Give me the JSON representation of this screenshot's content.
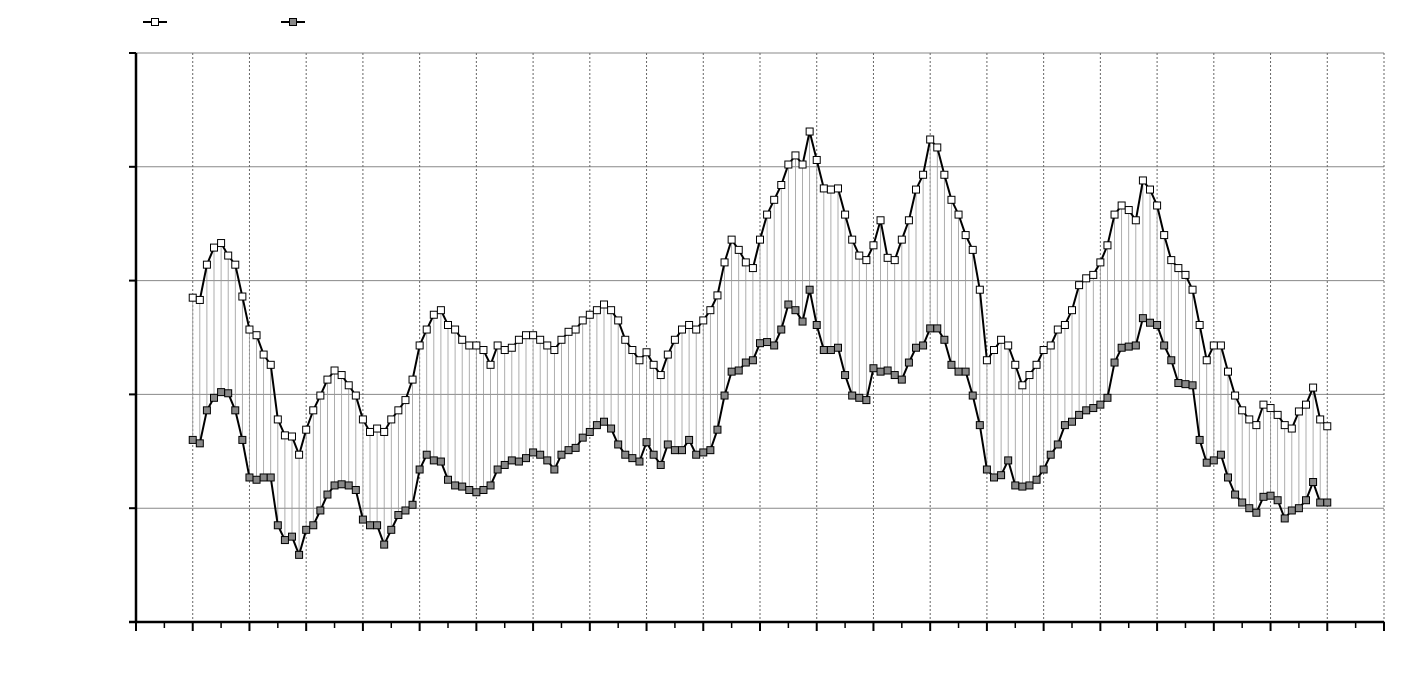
{
  "chart_data": {
    "type": "line",
    "x": [
      1,
      1.125,
      1.25,
      1.375,
      1.5,
      1.625,
      1.75,
      1.875,
      2,
      2.125,
      2.25,
      2.375,
      2.5,
      2.625,
      2.75,
      2.875,
      3,
      3.125,
      3.25,
      3.375,
      3.5,
      3.625,
      3.75,
      3.875,
      4,
      4.125,
      4.25,
      4.375,
      4.5,
      4.625,
      4.75,
      4.875,
      5,
      5.125,
      5.25,
      5.375,
      5.5,
      5.625,
      5.75,
      5.875,
      6,
      6.125,
      6.25,
      6.375,
      6.5,
      6.625,
      6.75,
      6.875,
      7,
      7.125,
      7.25,
      7.375,
      7.5,
      7.625,
      7.75,
      7.875,
      8,
      8.125,
      8.25,
      8.375,
      8.5,
      8.625,
      8.75,
      8.875,
      9,
      9.125,
      9.25,
      9.375,
      9.5,
      9.625,
      9.75,
      9.875,
      10,
      10.125,
      10.25,
      10.375,
      10.5,
      10.625,
      10.75,
      10.875,
      11,
      11.125,
      11.25,
      11.375,
      11.5,
      11.625,
      11.75,
      11.875,
      12,
      12.125,
      12.25,
      12.375,
      12.5,
      12.625,
      12.75,
      12.875,
      13,
      13.125,
      13.25,
      13.375,
      13.5,
      13.625,
      13.75,
      13.875,
      14,
      14.125,
      14.25,
      14.375,
      14.5,
      14.625,
      14.75,
      14.875,
      15,
      15.125,
      15.25,
      15.375,
      15.5,
      15.625,
      15.75,
      15.875,
      16,
      16.125,
      16.25,
      16.375,
      16.5,
      16.625,
      16.75,
      16.875,
      17,
      17.125,
      17.25,
      17.375,
      17.5,
      17.625,
      17.75,
      17.875,
      18,
      18.125,
      18.25,
      18.375,
      18.5,
      18.625,
      18.75,
      18.875,
      19,
      19.125,
      19.25,
      19.375,
      19.5,
      19.625,
      19.75,
      19.875,
      20,
      20.125,
      20.25,
      20.375,
      20.5,
      20.625,
      20.75,
      20.875,
      21
    ],
    "series": [
      {
        "color": "#ffffff",
        "values": [
          2.85,
          2.83,
          3.14,
          3.29,
          3.33,
          3.22,
          3.14,
          2.86,
          2.57,
          2.52,
          2.35,
          2.26,
          1.78,
          1.64,
          1.63,
          1.47,
          1.69,
          1.86,
          1.99,
          2.13,
          2.21,
          2.17,
          2.08,
          1.99,
          1.78,
          1.67,
          1.7,
          1.67,
          1.78,
          1.86,
          1.95,
          2.13,
          2.43,
          2.57,
          2.7,
          2.74,
          2.61,
          2.57,
          2.48,
          2.43,
          2.43,
          2.39,
          2.26,
          2.43,
          2.39,
          2.41,
          2.48,
          2.52,
          2.52,
          2.48,
          2.43,
          2.39,
          2.48,
          2.55,
          2.57,
          2.65,
          2.7,
          2.74,
          2.79,
          2.74,
          2.65,
          2.48,
          2.39,
          2.3,
          2.37,
          2.26,
          2.17,
          2.35,
          2.48,
          2.57,
          2.61,
          2.57,
          2.65,
          2.74,
          2.87,
          3.16,
          3.36,
          3.27,
          3.16,
          3.11,
          3.36,
          3.58,
          3.71,
          3.84,
          4.02,
          4.1,
          4.02,
          4.31,
          4.06,
          3.81,
          3.8,
          3.81,
          3.58,
          3.36,
          3.22,
          3.18,
          3.31,
          3.53,
          3.2,
          3.18,
          3.36,
          3.53,
          3.8,
          3.93,
          4.24,
          4.17,
          3.93,
          3.71,
          3.58,
          3.4,
          3.27,
          2.92,
          2.3,
          2.39,
          2.48,
          2.43,
          2.26,
          2.08,
          2.17,
          2.26,
          2.39,
          2.43,
          2.57,
          2.61,
          2.74,
          2.96,
          3.02,
          3.05,
          3.16,
          3.31,
          3.58,
          3.66,
          3.62,
          3.53,
          3.88,
          3.8,
          3.66,
          3.4,
          3.18,
          3.11,
          3.05,
          2.92,
          2.61,
          2.3,
          2.43,
          2.43,
          2.2,
          1.99,
          1.86,
          1.78,
          1.73,
          1.91,
          1.88,
          1.82,
          1.73,
          1.7,
          1.85,
          1.91,
          2.06,
          1.78,
          1.72
        ]
      },
      {
        "color": "#888888",
        "values": [
          1.6,
          1.57,
          1.86,
          1.97,
          2.02,
          2.01,
          1.86,
          1.6,
          1.27,
          1.25,
          1.27,
          1.27,
          0.85,
          0.72,
          0.75,
          0.59,
          0.81,
          0.85,
          0.98,
          1.12,
          1.2,
          1.21,
          1.2,
          1.16,
          0.9,
          0.85,
          0.85,
          0.68,
          0.81,
          0.94,
          0.98,
          1.03,
          1.34,
          1.47,
          1.42,
          1.41,
          1.25,
          1.2,
          1.19,
          1.16,
          1.14,
          1.16,
          1.2,
          1.34,
          1.38,
          1.42,
          1.41,
          1.44,
          1.49,
          1.47,
          1.42,
          1.34,
          1.47,
          1.51,
          1.53,
          1.62,
          1.67,
          1.73,
          1.76,
          1.7,
          1.56,
          1.47,
          1.44,
          1.41,
          1.58,
          1.47,
          1.38,
          1.56,
          1.51,
          1.51,
          1.6,
          1.47,
          1.49,
          1.51,
          1.69,
          1.99,
          2.2,
          2.21,
          2.28,
          2.3,
          2.45,
          2.46,
          2.43,
          2.57,
          2.79,
          2.74,
          2.64,
          2.92,
          2.61,
          2.39,
          2.39,
          2.41,
          2.17,
          1.99,
          1.97,
          1.95,
          2.23,
          2.2,
          2.21,
          2.17,
          2.13,
          2.28,
          2.41,
          2.43,
          2.58,
          2.58,
          2.48,
          2.26,
          2.2,
          2.2,
          1.99,
          1.73,
          1.34,
          1.27,
          1.29,
          1.42,
          1.2,
          1.19,
          1.2,
          1.25,
          1.34,
          1.47,
          1.56,
          1.73,
          1.76,
          1.82,
          1.86,
          1.88,
          1.91,
          1.97,
          2.28,
          2.41,
          2.42,
          2.43,
          2.67,
          2.63,
          2.61,
          2.43,
          2.3,
          2.1,
          2.09,
          2.08,
          1.6,
          1.4,
          1.42,
          1.47,
          1.27,
          1.12,
          1.05,
          1.0,
          0.96,
          1.1,
          1.11,
          1.07,
          0.91,
          0.98,
          1.0,
          1.07,
          1.23,
          1.05,
          1.05
        ]
      }
    ],
    "xlim": [
      0,
      22
    ],
    "xticks": [
      0,
      1,
      2,
      3,
      4,
      5,
      6,
      7,
      8,
      9,
      10,
      11,
      12,
      13,
      14,
      15,
      16,
      17,
      18,
      19,
      20,
      21,
      22
    ],
    "xminorticks": [
      0.5,
      1.5,
      2.5,
      3.5,
      4.5,
      5.5,
      6.5,
      7.5,
      8.5,
      9.5,
      10.5,
      11.5,
      12.5,
      13.5,
      14.5,
      15.5,
      16.5,
      17.5,
      18.5,
      19.5,
      20.5,
      21.5
    ],
    "ylim": [
      0,
      5
    ],
    "yticks": [
      0,
      1,
      2,
      3,
      4,
      5
    ],
    "grid": true
  }
}
